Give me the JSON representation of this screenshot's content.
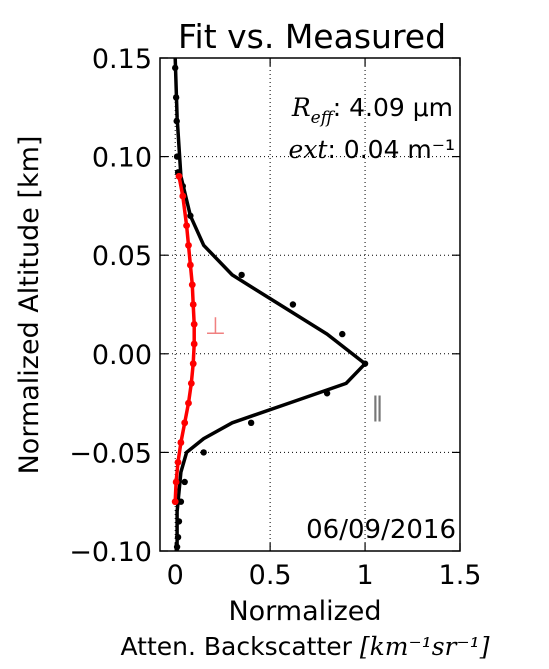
{
  "chart_data": {
    "type": "line",
    "title": "Fit vs. Measured",
    "xlabel_line1": "Normalized",
    "xlabel_line2_text": "Atten. Backscatter ",
    "xlabel_line2_math": "[km⁻¹sr⁻¹]",
    "ylabel": "Normalized Altitude [km]",
    "xlim": [
      -0.08,
      1.5
    ],
    "ylim": [
      -0.1,
      0.15
    ],
    "x_ticks": [
      0,
      0.5,
      1,
      1.5
    ],
    "x_tick_labels": [
      "0",
      "0.5",
      "1",
      "1.5"
    ],
    "y_ticks": [
      -0.1,
      -0.05,
      0.0,
      0.05,
      0.1,
      0.15
    ],
    "y_tick_labels": [
      "−0.10",
      "−0.05",
      "0.00",
      "0.05",
      "0.10",
      "0.15"
    ],
    "grid": true,
    "annotations": {
      "reff_math": "Reff",
      "reff_value": ": 4.09 μm",
      "ext_math": "ext",
      "ext_value": ": 0.04 m⁻¹",
      "date": "06/09/2016",
      "perp_symbol": "⊥",
      "parallel_symbol": "‖"
    },
    "series": [
      {
        "style": "black-line",
        "color": "#000000",
        "x": [
          0.0,
          0.01,
          0.03,
          0.08,
          0.15,
          0.3,
          0.55,
          0.8,
          1.0,
          0.9,
          0.6,
          0.3,
          0.15,
          0.06,
          0.03,
          0.02,
          0.01,
          0.01,
          0.01
        ],
        "y": [
          0.15,
          0.12,
          0.09,
          0.07,
          0.055,
          0.04,
          0.025,
          0.01,
          -0.005,
          -0.015,
          -0.025,
          -0.035,
          -0.043,
          -0.05,
          -0.06,
          -0.07,
          -0.08,
          -0.09,
          -0.1
        ]
      },
      {
        "style": "black-points",
        "color": "#000000",
        "x": [
          0.0,
          0.005,
          0.008,
          0.01,
          0.015,
          0.04,
          0.08,
          0.35,
          0.62,
          0.88,
          1.0,
          0.8,
          0.4,
          0.15,
          0.05,
          0.03,
          0.02,
          0.015,
          0.01
        ],
        "y": [
          0.145,
          0.13,
          0.118,
          0.1,
          0.092,
          0.085,
          0.07,
          0.04,
          0.025,
          0.01,
          -0.005,
          -0.02,
          -0.035,
          -0.05,
          -0.065,
          -0.075,
          -0.085,
          -0.093,
          -0.098
        ]
      },
      {
        "style": "red-line-points",
        "color": "#ff0000",
        "x": [
          0.02,
          0.04,
          0.06,
          0.07,
          0.08,
          0.09,
          0.095,
          0.1,
          0.1,
          0.095,
          0.085,
          0.07,
          0.05,
          0.03,
          0.015,
          0.005,
          0.0
        ],
        "y": [
          0.09,
          0.08,
          0.065,
          0.055,
          0.045,
          0.035,
          0.025,
          0.015,
          0.005,
          -0.005,
          -0.015,
          -0.025,
          -0.035,
          -0.045,
          -0.055,
          -0.065,
          -0.075
        ]
      }
    ]
  }
}
